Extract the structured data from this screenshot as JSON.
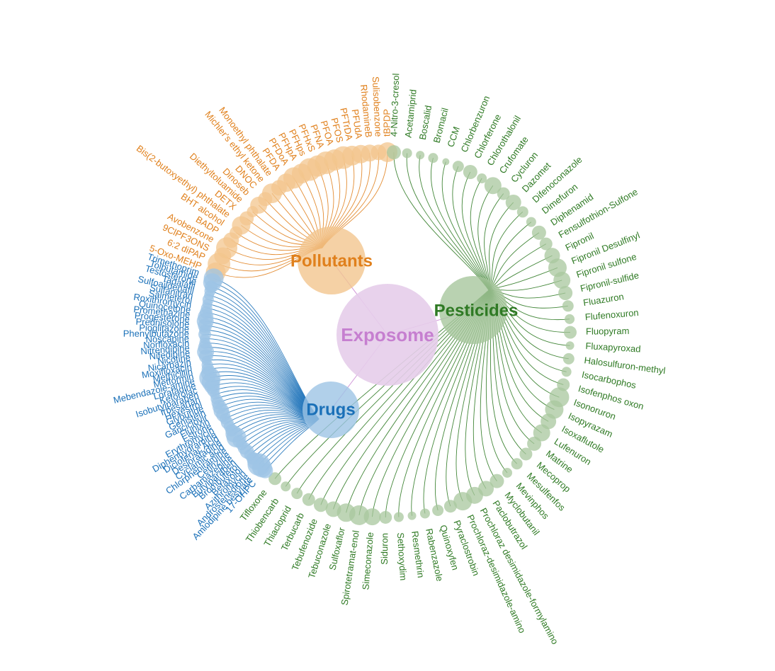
{
  "root": {
    "label": "Exposome",
    "color": "#c67fd0",
    "fill": "#e6cdea"
  },
  "groups": [
    {
      "id": "pollutants",
      "label": "Pollutants",
      "color": "#e0801c",
      "fill": "#f3c68e",
      "items": [
        {
          "name": "5-Oxo-MEHP",
          "size": 14
        },
        {
          "name": "6:2 diPAP",
          "size": 16
        },
        {
          "name": "9ClPF3ONS",
          "size": 12
        },
        {
          "name": "Avobenzone",
          "size": 15
        },
        {
          "name": "BADP",
          "size": 11
        },
        {
          "name": "BHT alcohol",
          "size": 9
        },
        {
          "name": "Bis(2-butoxyethyl) phthalate",
          "size": 13
        },
        {
          "name": "DETX",
          "size": 10
        },
        {
          "name": "Diethyltoluamide",
          "size": 8
        },
        {
          "name": "Dinoseb",
          "size": 12
        },
        {
          "name": "DNOC",
          "size": 10
        },
        {
          "name": "Michler's ethyl ketone",
          "size": 14
        },
        {
          "name": "Monoethyl phthalate",
          "size": 11
        },
        {
          "name": "PFDA",
          "size": 13
        },
        {
          "name": "PFDoA",
          "size": 15
        },
        {
          "name": "PFHpA",
          "size": 14
        },
        {
          "name": "PFHps",
          "size": 16
        },
        {
          "name": "PFHxS",
          "size": 15
        },
        {
          "name": "PFNA",
          "size": 16
        },
        {
          "name": "PFOA",
          "size": 15
        },
        {
          "name": "PFOS",
          "size": 16
        },
        {
          "name": "PFTrDA",
          "size": 14
        },
        {
          "name": "PFUdA",
          "size": 13
        },
        {
          "name": "RhodamineB",
          "size": 12
        },
        {
          "name": "Sulisobenzone",
          "size": 11
        },
        {
          "name": "tBPDP",
          "size": 14
        }
      ]
    },
    {
      "id": "pesticides",
      "label": "Pesticides",
      "color": "#2f7a24",
      "fill": "#a8c79d",
      "items": [
        {
          "name": "4-Nitro-3-cresol",
          "size": 10
        },
        {
          "name": "Acetamiprid",
          "size": 7
        },
        {
          "name": "Boscalid",
          "size": 6
        },
        {
          "name": "Bromacil",
          "size": 7
        },
        {
          "name": "CCM",
          "size": 5
        },
        {
          "name": "Chlorbenzuron",
          "size": 8
        },
        {
          "name": "Chlorferone",
          "size": 10
        },
        {
          "name": "Chlorothalonil",
          "size": 7
        },
        {
          "name": "Crufomate",
          "size": 12
        },
        {
          "name": "Cycluron",
          "size": 9
        },
        {
          "name": "Dazomet",
          "size": 11
        },
        {
          "name": "Difenoconazole",
          "size": 8
        },
        {
          "name": "Dimefuron",
          "size": 7
        },
        {
          "name": "Diphenamid",
          "size": 10
        },
        {
          "name": "Fensulfothion-Sulfone",
          "size": 9
        },
        {
          "name": "Fipronil",
          "size": 11
        },
        {
          "name": "Fipronil Desulfinyl",
          "size": 13
        },
        {
          "name": "Fipronil sulfone",
          "size": 12
        },
        {
          "name": "Fipronil-sulfide",
          "size": 10
        },
        {
          "name": "Fluazuron",
          "size": 8
        },
        {
          "name": "Flufenoxuron",
          "size": 7
        },
        {
          "name": "Fluopyram",
          "size": 9
        },
        {
          "name": "Fluxapyroxad",
          "size": 6
        },
        {
          "name": "Halosulfuron-methyl",
          "size": 8
        },
        {
          "name": "Isocarbophos",
          "size": 7
        },
        {
          "name": "Isofenphos oxon",
          "size": 9
        },
        {
          "name": "Isonoruron",
          "size": 14
        },
        {
          "name": "Isopyrazam",
          "size": 13
        },
        {
          "name": "Isoxaflutole",
          "size": 11
        },
        {
          "name": "Lufenuron",
          "size": 12
        },
        {
          "name": "Matrine",
          "size": 10
        },
        {
          "name": "Mecoprop",
          "size": 9
        },
        {
          "name": "Mesulfenfos",
          "size": 8
        },
        {
          "name": "Mevinphos",
          "size": 7
        },
        {
          "name": "Myclobutanil",
          "size": 10
        },
        {
          "name": "Paclobutrazol",
          "size": 11
        },
        {
          "name": "Prochloraz desimidazole-formylamino",
          "size": 12
        },
        {
          "name": "Prochloraz-desimidazole-amino",
          "size": 13
        },
        {
          "name": "Pyraclostrobin",
          "size": 9
        },
        {
          "name": "Quinoxyfen",
          "size": 8
        },
        {
          "name": "Rabenzazole",
          "size": 7
        },
        {
          "name": "Resmethrin",
          "size": 6
        },
        {
          "name": "Sethoxydim",
          "size": 7
        },
        {
          "name": "Siduron",
          "size": 9
        },
        {
          "name": "Simeconazole",
          "size": 12
        },
        {
          "name": "Spirotetramat-enol",
          "size": 14
        },
        {
          "name": "Sulfoxaflor",
          "size": 13
        },
        {
          "name": "Tebuconazole",
          "size": 11
        },
        {
          "name": "Tebufenozide",
          "size": 10
        },
        {
          "name": "Terbucarb",
          "size": 9
        },
        {
          "name": "Thiacloprid",
          "size": 8
        },
        {
          "name": "Thiobencarb",
          "size": 7
        },
        {
          "name": "Tifloxone",
          "size": 9
        }
      ]
    },
    {
      "id": "drugs",
      "label": "Drugs",
      "color": "#1a70b8",
      "fill": "#9dc4e5",
      "items": [
        {
          "name": "17-OHPC",
          "size": 11
        },
        {
          "name": "Amlodipine besylate",
          "size": 14
        },
        {
          "name": "Androstenedione",
          "size": 16
        },
        {
          "name": "Azithromycin",
          "size": 12
        },
        {
          "name": "Betaxolol",
          "size": 9
        },
        {
          "name": "Brombuterol",
          "size": 8
        },
        {
          "name": "Butylparaben",
          "size": 10
        },
        {
          "name": "Carbamazepine",
          "size": 9
        },
        {
          "name": "Cetirizine",
          "size": 8
        },
        {
          "name": "Chlorpheniramine",
          "size": 9
        },
        {
          "name": "Cyclamic acid",
          "size": 14
        },
        {
          "name": "Desloratadine",
          "size": 12
        },
        {
          "name": "Diclofenac Acid",
          "size": 9
        },
        {
          "name": "Diphenhydramine",
          "size": 8
        },
        {
          "name": "Erythromycin",
          "size": 9
        },
        {
          "name": "Estrone",
          "size": 8
        },
        {
          "name": "Flunixin",
          "size": 10
        },
        {
          "name": "Ganciclovir",
          "size": 11
        },
        {
          "name": "Genistein",
          "size": 10
        },
        {
          "name": "Glyburide",
          "size": 9
        },
        {
          "name": "Hexestrol",
          "size": 8
        },
        {
          "name": "Irbesartan",
          "size": 7
        },
        {
          "name": "Isobutylparaben",
          "size": 9
        },
        {
          "name": "Ketorolac",
          "size": 11
        },
        {
          "name": "Loratadine",
          "size": 13
        },
        {
          "name": "Mebendazole-amine",
          "size": 15
        },
        {
          "name": "Metformin",
          "size": 11
        },
        {
          "name": "Methicillin",
          "size": 9
        },
        {
          "name": "Moxifloxacin",
          "size": 8
        },
        {
          "name": "Nicarbazin",
          "size": 7
        },
        {
          "name": "Nicotine",
          "size": 10
        },
        {
          "name": "Nifedipine",
          "size": 12
        },
        {
          "name": "Nitrendipine",
          "size": 10
        },
        {
          "name": "Norfloxacin",
          "size": 8
        },
        {
          "name": "Noscapine",
          "size": 7
        },
        {
          "name": "Phenylbutazone",
          "size": 9
        },
        {
          "name": "Pioglitazone",
          "size": 8
        },
        {
          "name": "Prednisolone",
          "size": 10
        },
        {
          "name": "Progesterone",
          "size": 12
        },
        {
          "name": "Promethazine",
          "size": 11
        },
        {
          "name": "Quinocetone",
          "size": 9
        },
        {
          "name": "Roxithromycin",
          "size": 8
        },
        {
          "name": "Salmeterol",
          "size": 7
        },
        {
          "name": "Sulfanitran",
          "size": 8
        },
        {
          "name": "Sulfoaildenafil",
          "size": 7
        },
        {
          "name": "Tadalafil",
          "size": 8
        },
        {
          "name": "Testosterone",
          "size": 9
        },
        {
          "name": "Tolbutamide",
          "size": 13
        },
        {
          "name": "Trimethoprim",
          "size": 14
        }
      ]
    }
  ]
}
